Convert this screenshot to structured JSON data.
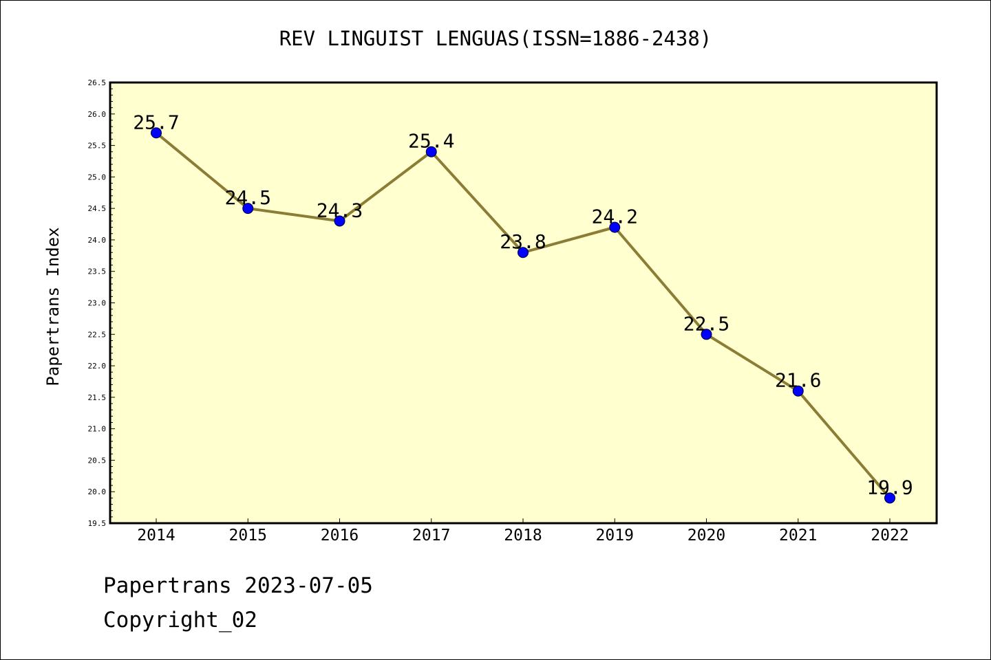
{
  "chart_data": {
    "type": "line",
    "title": "REV LINGUIST LENGUAS(ISSN=1886-2438)",
    "xlabel": "",
    "ylabel": "Papertrans Index",
    "categories": [
      "2014",
      "2015",
      "2016",
      "2017",
      "2018",
      "2019",
      "2020",
      "2021",
      "2022"
    ],
    "series": [
      {
        "values": [
          25.7,
          24.5,
          24.3,
          25.4,
          23.8,
          24.2,
          22.5,
          21.6,
          19.9
        ],
        "data_labels": [
          "25.7",
          "24.5",
          "24.3",
          "25.4",
          "23.8",
          "24.2",
          "22.5",
          "21.6",
          "19.9"
        ]
      }
    ],
    "ylim": [
      19.5,
      26.5
    ],
    "yticks": [
      "19.5",
      "20.0",
      "20.5",
      "21.0",
      "21.5",
      "22.0",
      "22.5",
      "23.0",
      "23.5",
      "24.0",
      "24.5",
      "25.0",
      "25.5",
      "26.0",
      "26.5"
    ],
    "grid": false,
    "colors": {
      "plot_background": "#ffffd0",
      "line": "#8b7d35",
      "marker": "#0000ff"
    }
  },
  "footer": {
    "line1": "Papertrans 2023-07-05",
    "line2": "Copyright_02"
  }
}
